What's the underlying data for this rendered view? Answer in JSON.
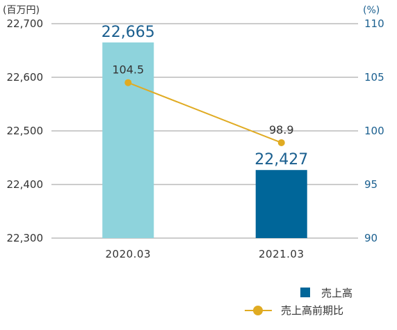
{
  "chart_data": {
    "type": "bar",
    "categories": [
      "2020.03",
      "2021.03"
    ],
    "y_unit": "(百万円)",
    "y2_unit": "(%)",
    "ylim": [
      22300,
      22700
    ],
    "yticks": [
      "22,300",
      "22,400",
      "22,500",
      "22,600",
      "22,700"
    ],
    "y2lim": [
      90,
      110
    ],
    "y2ticks": [
      "90",
      "95",
      "100",
      "105",
      "110"
    ],
    "grid": true,
    "legend_placement": "bottom-right",
    "series": [
      {
        "name": "売上高",
        "kind": "bar",
        "values": [
          22665,
          22427
        ],
        "labels": [
          "22,665",
          "22,427"
        ],
        "colors": [
          "#8ed3dc",
          "#006699"
        ],
        "label_color": "#1a5f8f"
      },
      {
        "name": "売上高前期比",
        "kind": "line",
        "axis": "right",
        "values": [
          104.5,
          98.9
        ],
        "labels": [
          "104.5",
          "98.9"
        ],
        "color": "#e0ab22"
      }
    ],
    "colors": {
      "text": "#333333",
      "right_axis_text": "#1a5f8f",
      "grid": "#999999"
    }
  }
}
